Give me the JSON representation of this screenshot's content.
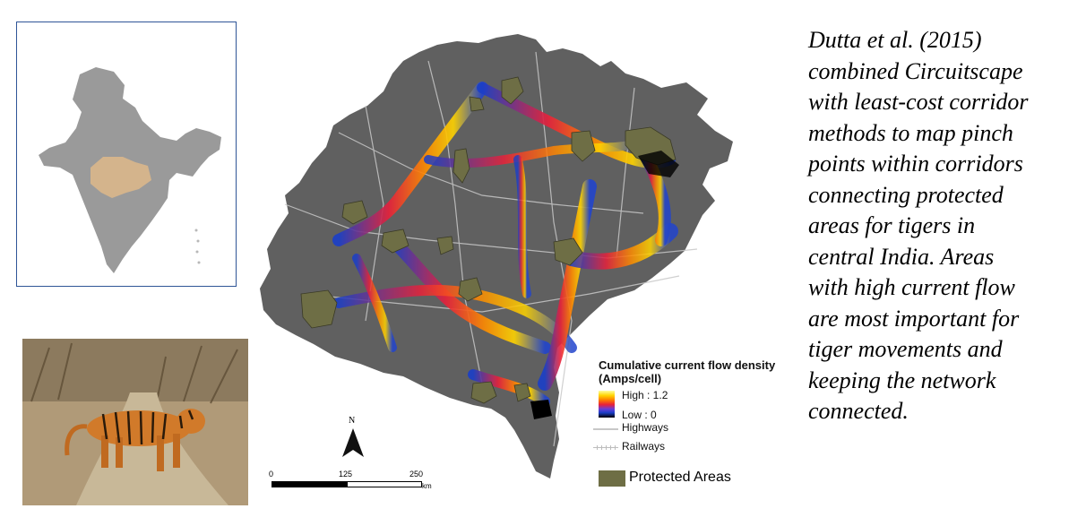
{
  "legend": {
    "title_line1": "Cumulative current flow density",
    "title_line2": "(Amps/cell)",
    "high": "High : 1.2",
    "low": "Low : 0",
    "highways": "Highways",
    "railways": "Railways",
    "protected_areas": "Protected Areas"
  },
  "scale_bar": {
    "tick_0": "0",
    "tick_125": "125",
    "tick_250": "250",
    "unit": "km"
  },
  "north_arrow": {
    "label": "N"
  },
  "caption": {
    "lines": [
      "Dutta et al. (2015)",
      "combined Circuitscape",
      "with least-cost corridor",
      "methods to map pinch",
      "points within corridors",
      "connecting protected",
      "areas for tigers in",
      "central India. Areas",
      "with high current flow",
      "are most important for",
      "tiger movements and",
      "keeping the network",
      "connected."
    ]
  },
  "colors": {
    "region_fill": "#606060",
    "protected_area": "#6e6e45",
    "inset_country": "#9a9a9a",
    "inset_highlight": "#d4b48c",
    "inset_border": "#2f5597"
  },
  "icons": {
    "north": "north-arrow-icon",
    "tiger": "tiger-photo"
  }
}
